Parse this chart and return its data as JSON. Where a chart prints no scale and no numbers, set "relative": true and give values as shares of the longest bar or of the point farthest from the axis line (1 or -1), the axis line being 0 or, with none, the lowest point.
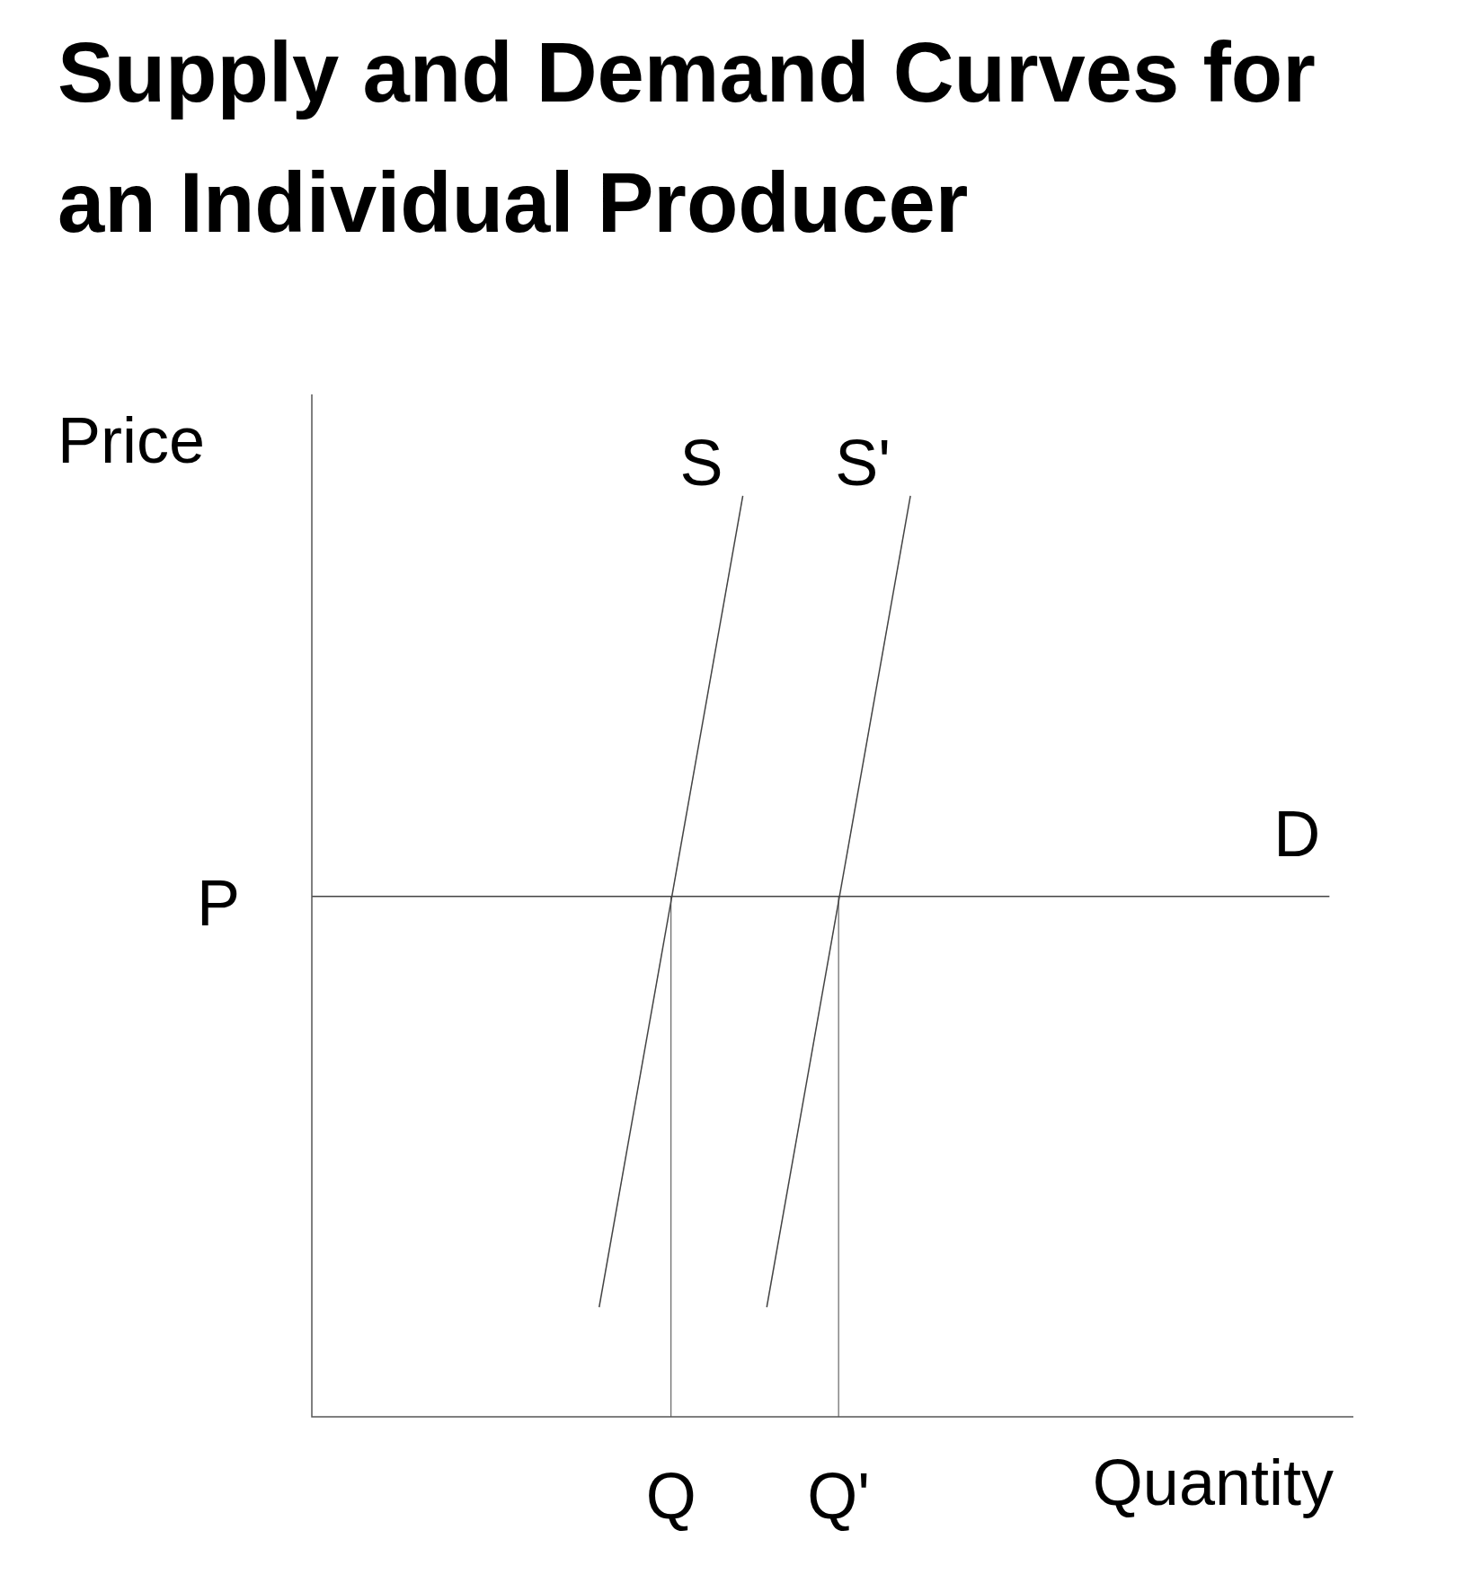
{
  "chart_data": {
    "type": "line",
    "title": "Supply and Demand Curves for an Individual Producer",
    "xlabel": "Quantity",
    "ylabel": "Price",
    "relative": true,
    "marker": "none",
    "line_style": "solid",
    "categories": [
      null,
      null,
      null,
      null,
      null,
      null,
      null,
      null,
      null,
      null,
      null,
      null,
      null,
      null,
      null,
      null,
      null,
      null,
      null,
      null,
      null,
      null,
      null,
      null,
      null,
      null,
      null,
      null,
      null,
      null,
      "Q",
      null,
      null,
      null,
      null,
      null,
      null,
      null,
      null,
      null,
      null,
      null,
      null,
      null,
      "Q'",
      null,
      null,
      null,
      null,
      null,
      null,
      null,
      null,
      null,
      null,
      null,
      null,
      null,
      null,
      null,
      null,
      null,
      null,
      null,
      null,
      null,
      null,
      null,
      null,
      null,
      null,
      null,
      null,
      null,
      null,
      null,
      null,
      null,
      null,
      null,
      null,
      null,
      null,
      null,
      null,
      null,
      null,
      null
    ],
    "annotations": [
      "P"
    ],
    "ref_lines": [
      {
        "axis": "x",
        "value": "Q",
        "color": "#666666"
      },
      {
        "axis": "x",
        "value": "Q'",
        "color": "#666666"
      }
    ],
    "series": [
      {
        "name": "S",
        "color": "#444444",
        "values": [
          null,
          null,
          null,
          null,
          null,
          null,
          null,
          null,
          null,
          null,
          null,
          null,
          null,
          null,
          null,
          null,
          null,
          null,
          null,
          null,
          null,
          null,
          null,
          null,
          0.119,
          null,
          null,
          null,
          null,
          null,
          null,
          null,
          null,
          null,
          null,
          null,
          1,
          null,
          null,
          null,
          null,
          null,
          null,
          null,
          null,
          null,
          null,
          null,
          null,
          null,
          null,
          null,
          null,
          null,
          null,
          null,
          null,
          null,
          null,
          null,
          null,
          null,
          null,
          null,
          null,
          null,
          null,
          null,
          null,
          null,
          null,
          null,
          null,
          null,
          null,
          null,
          null,
          null,
          null,
          null,
          null,
          null,
          null,
          null,
          null,
          null,
          null,
          null
        ]
      },
      {
        "name": "S'",
        "color": "#444444",
        "values": [
          null,
          null,
          null,
          null,
          null,
          null,
          null,
          null,
          null,
          null,
          null,
          null,
          null,
          null,
          null,
          null,
          null,
          null,
          null,
          null,
          null,
          null,
          null,
          null,
          null,
          null,
          null,
          null,
          null,
          null,
          null,
          null,
          null,
          null,
          null,
          null,
          null,
          null,
          0.119,
          null,
          null,
          null,
          null,
          null,
          null,
          null,
          null,
          null,
          null,
          null,
          1,
          null,
          null,
          null,
          null,
          null,
          null,
          null,
          null,
          null,
          null,
          null,
          null,
          null,
          null,
          null,
          null,
          null,
          null,
          null,
          null,
          null,
          null,
          null,
          null,
          null,
          null,
          null,
          null,
          null,
          null,
          null,
          null,
          null,
          null,
          null,
          null,
          null
        ]
      },
      {
        "name": "D",
        "color": "#444444",
        "values": [
          0.565,
          null,
          null,
          null,
          null,
          null,
          null,
          null,
          null,
          null,
          null,
          null,
          null,
          null,
          null,
          null,
          null,
          null,
          null,
          null,
          null,
          null,
          null,
          null,
          null,
          null,
          null,
          null,
          null,
          null,
          null,
          null,
          null,
          null,
          null,
          null,
          null,
          null,
          null,
          null,
          null,
          null,
          null,
          null,
          null,
          null,
          null,
          null,
          null,
          null,
          null,
          null,
          null,
          null,
          null,
          null,
          null,
          null,
          null,
          null,
          null,
          null,
          null,
          null,
          null,
          null,
          null,
          null,
          null,
          null,
          null,
          null,
          null,
          null,
          null,
          null,
          null,
          null,
          null,
          null,
          null,
          null,
          null,
          null,
          null,
          0.565,
          null,
          null
        ]
      }
    ]
  }
}
